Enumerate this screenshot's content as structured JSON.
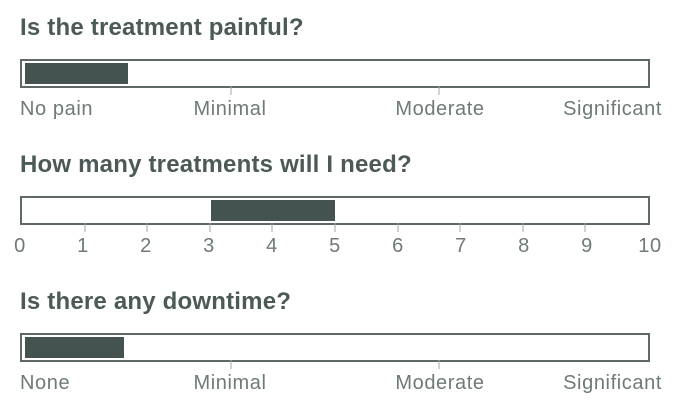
{
  "colors": {
    "title_text": "#4b5a56",
    "bar_fill": "#44534f",
    "bar_border": "#5d6867",
    "axis_label_text": "#6f7a78",
    "tick": "#9fa8a7",
    "background": "#ffffff"
  },
  "chart_data": [
    {
      "type": "bar",
      "title": "Is the treatment painful?",
      "scale": {
        "min": 0,
        "max": 3
      },
      "axis_labels": [
        {
          "text": "No pain",
          "value": 0,
          "align": "left"
        },
        {
          "text": "Minimal",
          "value": 1,
          "align": "center"
        },
        {
          "text": "Moderate",
          "value": 2,
          "align": "center"
        },
        {
          "text": "Significant",
          "value": 3,
          "align": "right"
        }
      ],
      "ticks": [
        1,
        2
      ],
      "fill": {
        "start": 0,
        "end": 0.5
      },
      "legend": "none",
      "grid": false
    },
    {
      "type": "bar",
      "title": "How many treatments will I need?",
      "scale": {
        "min": 0,
        "max": 10
      },
      "axis_labels": [
        {
          "text": "0",
          "value": 0,
          "align": "center"
        },
        {
          "text": "1",
          "value": 1,
          "align": "center"
        },
        {
          "text": "2",
          "value": 2,
          "align": "center"
        },
        {
          "text": "3",
          "value": 3,
          "align": "center"
        },
        {
          "text": "4",
          "value": 4,
          "align": "center"
        },
        {
          "text": "5",
          "value": 5,
          "align": "center"
        },
        {
          "text": "6",
          "value": 6,
          "align": "center"
        },
        {
          "text": "7",
          "value": 7,
          "align": "center"
        },
        {
          "text": "8",
          "value": 8,
          "align": "center"
        },
        {
          "text": "9",
          "value": 9,
          "align": "center"
        },
        {
          "text": "10",
          "value": 10,
          "align": "center"
        }
      ],
      "ticks": [
        1,
        2,
        3,
        4,
        5,
        6,
        7,
        8,
        9
      ],
      "fill": {
        "start": 3,
        "end": 5
      },
      "legend": "none",
      "grid": false
    },
    {
      "type": "bar",
      "title": "Is there any downtime?",
      "scale": {
        "min": 0,
        "max": 3
      },
      "axis_labels": [
        {
          "text": "None",
          "value": 0,
          "align": "left"
        },
        {
          "text": "Minimal",
          "value": 1,
          "align": "center"
        },
        {
          "text": "Moderate",
          "value": 2,
          "align": "center"
        },
        {
          "text": "Significant",
          "value": 3,
          "align": "right"
        }
      ],
      "ticks": [
        1,
        2
      ],
      "fill": {
        "start": 0,
        "end": 0.48
      },
      "legend": "none",
      "grid": false
    }
  ]
}
